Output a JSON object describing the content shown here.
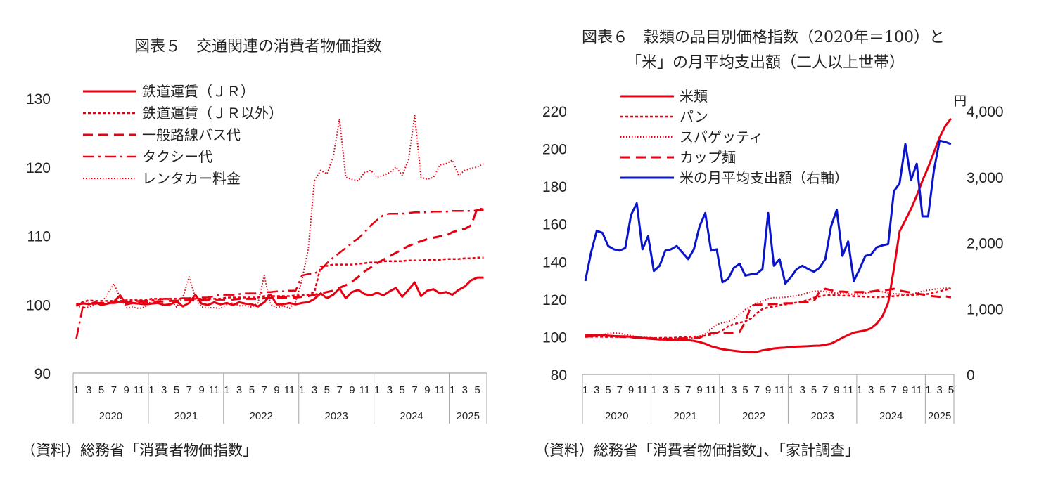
{
  "chart_data": [
    {
      "type": "line",
      "title": "図表５　交通関連の消費者物価指数",
      "source": "（資料）総務省「消費者物価指数」",
      "ylim": [
        90,
        130
      ],
      "yticks": [
        90,
        100,
        110,
        120,
        130
      ],
      "month_ticks": [
        "1",
        "3",
        "5",
        "7",
        "9",
        "11"
      ],
      "month_ticks_partial": [
        "1",
        "3",
        "5"
      ],
      "years": [
        "2020",
        "2021",
        "2022",
        "2023",
        "2024",
        "2025"
      ],
      "months_in_last_year": 6,
      "legend_position": "top-left",
      "series": [
        {
          "name": "鉄道運賃（ＪＲ）",
          "color": "#e60012",
          "style": "solid",
          "values": [
            99.8,
            100.2,
            100.0,
            100.3,
            99.9,
            100.1,
            100.4,
            101.3,
            100.0,
            100.2,
            100.1,
            100.0,
            100.1,
            100.2,
            99.9,
            100.0,
            100.4,
            99.7,
            100.2,
            101.4,
            100.1,
            99.9,
            100.3,
            100.0,
            100.2,
            99.9,
            100.3,
            100.1,
            100.0,
            99.7,
            100.3,
            101.4,
            100.0,
            100.0,
            100.2,
            100.0,
            100.2,
            100.3,
            100.8,
            101.6,
            100.9,
            101.4,
            102.3,
            100.9,
            101.8,
            102.1,
            101.5,
            101.3,
            101.7,
            101.3,
            101.9,
            102.4,
            101.1,
            102.1,
            103.2,
            101.2,
            102.0,
            102.2,
            101.6,
            101.8,
            101.4,
            102.1,
            102.6,
            103.5,
            103.9,
            103.9
          ]
        },
        {
          "name": "鉄道運賃（ＪＲ以外）",
          "color": "#e60012",
          "style": "dot",
          "values": [
            100.0,
            100.3,
            100.6,
            100.5,
            100.5,
            100.5,
            100.5,
            100.5,
            100.6,
            100.6,
            100.6,
            100.6,
            100.8,
            100.8,
            100.8,
            100.8,
            100.8,
            100.8,
            100.8,
            100.8,
            100.8,
            100.8,
            100.8,
            100.8,
            101.0,
            101.0,
            101.0,
            101.0,
            101.0,
            101.0,
            101.2,
            101.2,
            101.2,
            101.2,
            101.2,
            101.3,
            101.3,
            101.4,
            101.8,
            105.5,
            105.6,
            105.8,
            105.8,
            105.8,
            105.8,
            105.9,
            106.0,
            106.1,
            106.1,
            106.3,
            106.3,
            106.3,
            106.3,
            106.4,
            106.4,
            106.4,
            106.5,
            106.5,
            106.5,
            106.6,
            106.6,
            106.6,
            106.7,
            106.7,
            106.8,
            106.8
          ]
        },
        {
          "name": "一般路線バス代",
          "color": "#e60012",
          "style": "dash",
          "values": [
            100.0,
            100.1,
            100.1,
            100.1,
            100.2,
            100.2,
            100.2,
            100.3,
            100.3,
            100.3,
            100.3,
            100.3,
            100.4,
            100.4,
            100.4,
            100.5,
            100.5,
            100.6,
            100.6,
            100.6,
            100.6,
            100.6,
            100.7,
            100.7,
            100.7,
            100.7,
            100.8,
            100.8,
            100.8,
            100.8,
            100.9,
            100.9,
            101.0,
            101.0,
            101.0,
            101.0,
            101.1,
            101.2,
            101.4,
            101.6,
            101.8,
            102.0,
            102.4,
            102.8,
            103.3,
            104.0,
            104.8,
            105.4,
            106.0,
            106.5,
            107.0,
            107.5,
            108.0,
            108.5,
            108.9,
            109.2,
            109.5,
            109.7,
            109.9,
            110.0,
            110.5,
            110.8,
            111.0,
            111.5,
            114.0,
            113.8
          ]
        },
        {
          "name": "タクシー代",
          "color": "#e60012",
          "style": "dashdot",
          "values": [
            95.0,
            99.5,
            100.2,
            100.2,
            100.2,
            100.2,
            100.3,
            100.3,
            100.3,
            100.4,
            100.5,
            100.5,
            100.6,
            100.7,
            100.8,
            100.8,
            100.8,
            100.9,
            100.9,
            101.0,
            101.0,
            101.0,
            101.2,
            101.4,
            101.4,
            101.4,
            101.5,
            101.6,
            101.6,
            101.6,
            101.8,
            101.8,
            101.9,
            101.9,
            102.0,
            102.0,
            104.2,
            104.4,
            104.5,
            105.0,
            106.0,
            106.8,
            107.5,
            108.2,
            109.0,
            109.6,
            110.5,
            111.5,
            112.3,
            113.0,
            113.2,
            113.2,
            113.2,
            113.3,
            113.4,
            113.4,
            113.4,
            113.5,
            113.5,
            113.5,
            113.6,
            113.6,
            113.6,
            113.6,
            113.7,
            113.7
          ]
        },
        {
          "name": "レンタカー料金",
          "color": "#e60012",
          "style": "dotted",
          "values": [
            99.8,
            99.5,
            99.6,
            100.0,
            100.2,
            101.5,
            103.0,
            101.0,
            99.5,
            99.6,
            99.4,
            99.6,
            100.5,
            100.5,
            100.8,
            100.7,
            99.6,
            101.0,
            104.0,
            101.0,
            99.6,
            99.5,
            99.5,
            99.4,
            100.0,
            100.2,
            99.8,
            99.8,
            99.6,
            100.2,
            104.2,
            100.0,
            99.5,
            99.8,
            99.4,
            100.4,
            103.5,
            108.0,
            118.0,
            119.5,
            119.0,
            121.5,
            127.0,
            118.5,
            118.2,
            118.0,
            119.2,
            119.5,
            118.5,
            118.8,
            119.2,
            120.0,
            118.8,
            121.0,
            127.5,
            118.5,
            118.2,
            118.5,
            120.3,
            120.5,
            121.0,
            118.8,
            119.5,
            119.8,
            120.0,
            120.5
          ]
        }
      ]
    },
    {
      "type": "line",
      "title": "図表６　穀類の品目別価格指数（2020年＝100）と",
      "title_line2": "「米」の月平均支出額（二人以上世帯）",
      "source": "（資料）総務省「消費者物価指数」、「家計調査」",
      "ylim": [
        80,
        220
      ],
      "yticks": [
        80,
        100,
        120,
        140,
        160,
        180,
        200,
        220
      ],
      "y2lim": [
        0,
        4000
      ],
      "y2ticks": [
        "0",
        "1,000",
        "2,000",
        "3,000",
        "4,000"
      ],
      "y2label": "円",
      "month_ticks": [
        "1",
        "3",
        "5",
        "7",
        "9",
        "11"
      ],
      "month_ticks_partial": [
        "1",
        "3",
        "5"
      ],
      "years": [
        "2020",
        "2021",
        "2022",
        "2023",
        "2024",
        "2025"
      ],
      "months_in_last_year": 5,
      "legend_position": "top-left",
      "series": [
        {
          "name": "米類",
          "color": "#e60012",
          "style": "solid",
          "axis": "left",
          "values": [
            100.8,
            100.8,
            100.8,
            100.8,
            100.6,
            100.4,
            100.3,
            100.2,
            100.0,
            99.7,
            99.4,
            99.0,
            98.8,
            98.6,
            98.5,
            98.4,
            98.3,
            98.2,
            98.2,
            97.8,
            97.2,
            96.3,
            95.0,
            94.2,
            93.4,
            93.0,
            92.6,
            92.2,
            92.0,
            91.8,
            92.0,
            92.8,
            93.2,
            93.8,
            94.1,
            94.3,
            94.6,
            94.8,
            94.9,
            95.0,
            95.2,
            95.3,
            95.7,
            96.4,
            97.9,
            99.5,
            101.0,
            102.2,
            102.8,
            103.4,
            104.5,
            107.0,
            111.0,
            118.0,
            136.0,
            156.0,
            162.0,
            168.0,
            175.0,
            183.0,
            190.0,
            198.0,
            206.0,
            212.0,
            216.0
          ]
        },
        {
          "name": "パン",
          "color": "#e60012",
          "style": "dot",
          "axis": "left",
          "values": [
            100.0,
            100.0,
            100.1,
            100.0,
            99.9,
            100.0,
            99.9,
            100.0,
            99.8,
            99.6,
            99.4,
            99.5,
            99.3,
            99.4,
            99.5,
            99.4,
            99.6,
            99.8,
            99.9,
            100.1,
            100.3,
            100.6,
            101.2,
            102.0,
            103.5,
            105.5,
            106.8,
            107.5,
            108.2,
            109.8,
            112.5,
            114.8,
            115.6,
            116.0,
            116.8,
            117.2,
            117.8,
            118.2,
            118.8,
            119.6,
            120.8,
            121.5,
            122.0,
            122.3,
            122.1,
            121.9,
            121.8,
            121.6,
            121.5,
            121.3,
            121.2,
            121.0,
            121.2,
            121.4,
            121.6,
            121.8,
            122.0,
            122.2,
            122.4,
            122.6,
            122.8,
            123.4,
            124.2,
            125.0,
            125.6
          ]
        },
        {
          "name": "スパゲッティ",
          "color": "#e60012",
          "style": "dotted",
          "axis": "left",
          "values": [
            100.0,
            100.2,
            100.6,
            101.0,
            101.8,
            102.0,
            101.8,
            101.2,
            100.6,
            100.0,
            99.8,
            99.6,
            99.4,
            99.2,
            99.1,
            99.0,
            99.0,
            99.1,
            99.2,
            99.4,
            100.0,
            101.5,
            104.0,
            106.5,
            107.5,
            108.0,
            109.5,
            112.0,
            114.5,
            116.2,
            117.8,
            119.0,
            120.2,
            120.8,
            120.8,
            121.0,
            121.5,
            121.8,
            122.5,
            123.5,
            124.2,
            124.3,
            124.0,
            123.5,
            123.2,
            123.0,
            122.8,
            122.6,
            122.8,
            123.2,
            123.8,
            124.2,
            123.9,
            123.4,
            122.9,
            122.7,
            122.5,
            122.6,
            123.2,
            124.2,
            124.8,
            125.3,
            125.6,
            125.8,
            125.8
          ]
        },
        {
          "name": "カップ麺",
          "color": "#e60012",
          "style": "dash",
          "axis": "left",
          "values": [
            100.0,
            100.3,
            100.6,
            100.7,
            100.5,
            100.3,
            100.1,
            99.9,
            99.7,
            99.5,
            99.3,
            99.2,
            99.0,
            98.9,
            98.9,
            99.0,
            99.1,
            99.2,
            99.3,
            99.4,
            99.5,
            101.0,
            101.8,
            102.0,
            102.0,
            102.0,
            102.2,
            102.5,
            108.0,
            116.5,
            117.0,
            117.1,
            117.2,
            117.4,
            117.5,
            117.8,
            117.8,
            118.0,
            118.5,
            118.5,
            119.0,
            124.0,
            125.5,
            124.8,
            124.0,
            124.0,
            123.8,
            123.8,
            123.8,
            123.8,
            124.0,
            124.5,
            124.5,
            125.0,
            125.5,
            124.5,
            124.0,
            123.5,
            123.0,
            122.5,
            122.0,
            121.5,
            121.2,
            121.5,
            121.0
          ]
        },
        {
          "name": "米の月平均支出額（右軸）",
          "color": "#0a14c8",
          "style": "solid",
          "axis": "right",
          "values": [
            1420,
            1850,
            2180,
            2150,
            1950,
            1900,
            1880,
            1920,
            2420,
            2600,
            1900,
            2100,
            1570,
            1650,
            1880,
            1900,
            1950,
            1850,
            1750,
            1900,
            2250,
            2450,
            1880,
            1900,
            1400,
            1450,
            1620,
            1680,
            1500,
            1520,
            1530,
            1600,
            2450,
            1650,
            1750,
            1380,
            1480,
            1600,
            1650,
            1600,
            1560,
            1620,
            1750,
            2250,
            2500,
            1800,
            2020,
            1420,
            1600,
            1800,
            1820,
            1930,
            1960,
            1980,
            2780,
            2900,
            3500,
            2950,
            3200,
            2400,
            2400,
            3100,
            3550,
            3530,
            3500
          ]
        }
      ]
    }
  ]
}
